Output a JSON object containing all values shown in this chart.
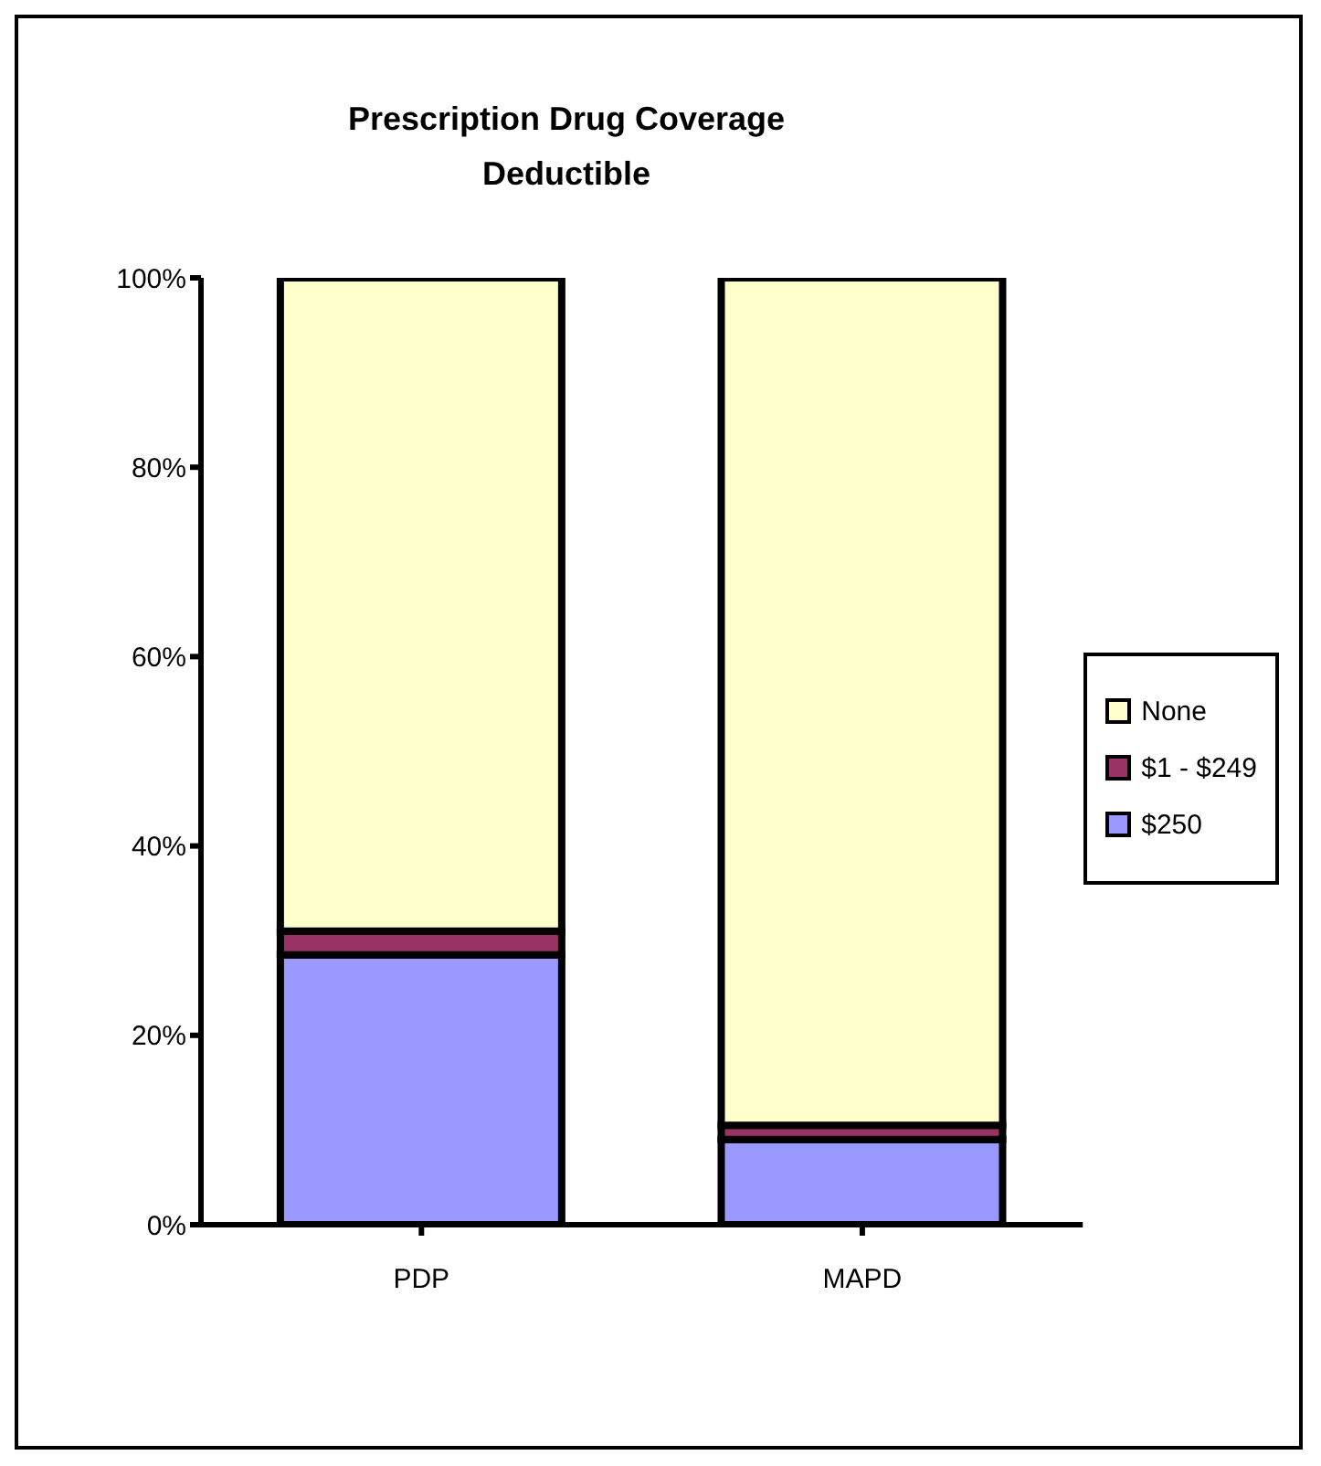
{
  "chart_data": {
    "type": "bar",
    "title": "Prescription Drug Coverage\nDeductible",
    "categories": [
      "PDP",
      "MAPD"
    ],
    "stacked": true,
    "series": [
      {
        "name": "$250",
        "color": "#9999ff",
        "values": [
          28.5,
          9
        ]
      },
      {
        "name": "$1 - $249",
        "color": "#993366",
        "values": [
          2.5,
          1.5
        ]
      },
      {
        "name": "None",
        "color": "#ffffcc",
        "values": [
          69,
          89.5
        ]
      }
    ],
    "ylim": [
      0,
      100
    ],
    "yticks": [
      {
        "value": 0,
        "label": "0%"
      },
      {
        "value": 20,
        "label": "20%"
      },
      {
        "value": 40,
        "label": "40%"
      },
      {
        "value": 60,
        "label": "60%"
      },
      {
        "value": 80,
        "label": "80%"
      },
      {
        "value": 100,
        "label": "100%"
      }
    ],
    "grid": false,
    "legend": "right"
  }
}
